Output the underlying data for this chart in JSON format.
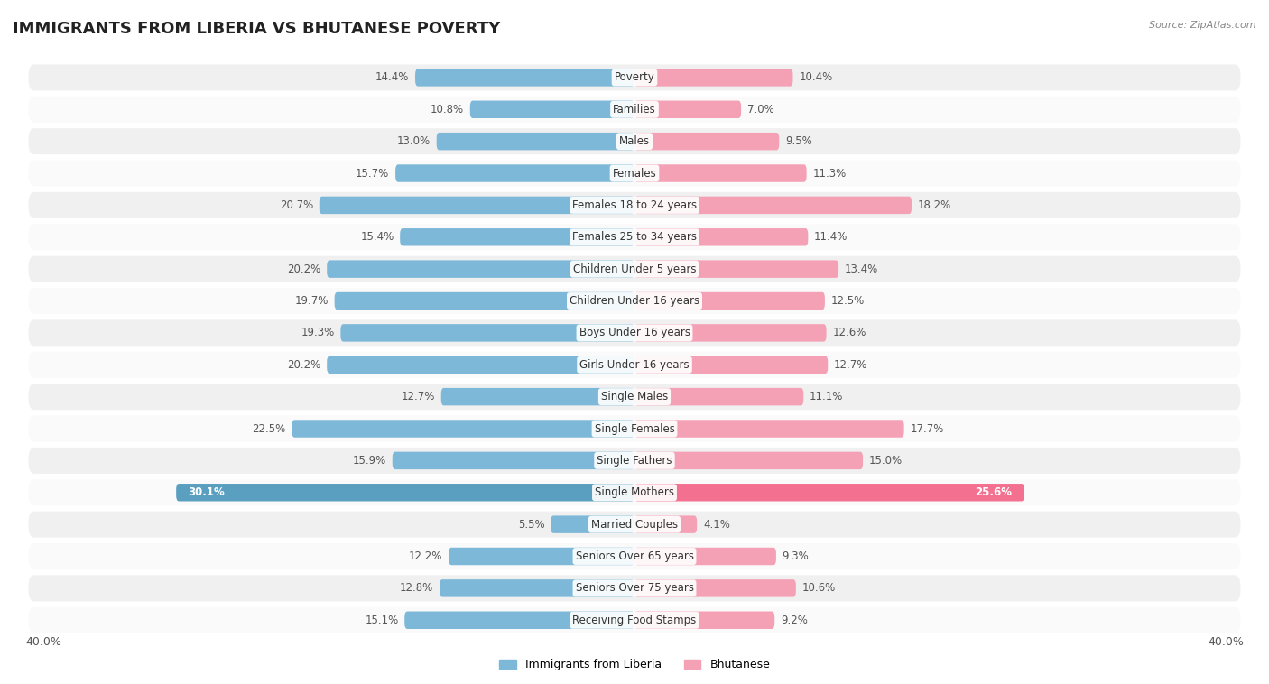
{
  "title": "IMMIGRANTS FROM LIBERIA VS BHUTANESE POVERTY",
  "source": "Source: ZipAtlas.com",
  "categories": [
    "Poverty",
    "Families",
    "Males",
    "Females",
    "Females 18 to 24 years",
    "Females 25 to 34 years",
    "Children Under 5 years",
    "Children Under 16 years",
    "Boys Under 16 years",
    "Girls Under 16 years",
    "Single Males",
    "Single Females",
    "Single Fathers",
    "Single Mothers",
    "Married Couples",
    "Seniors Over 65 years",
    "Seniors Over 75 years",
    "Receiving Food Stamps"
  ],
  "liberia_values": [
    14.4,
    10.8,
    13.0,
    15.7,
    20.7,
    15.4,
    20.2,
    19.7,
    19.3,
    20.2,
    12.7,
    22.5,
    15.9,
    30.1,
    5.5,
    12.2,
    12.8,
    15.1
  ],
  "bhutanese_values": [
    10.4,
    7.0,
    9.5,
    11.3,
    18.2,
    11.4,
    13.4,
    12.5,
    12.6,
    12.7,
    11.1,
    17.7,
    15.0,
    25.6,
    4.1,
    9.3,
    10.6,
    9.2
  ],
  "liberia_color": "#7db8d8",
  "bhutanese_color": "#f4a0b5",
  "highlight_liberia_color": "#5a9fc0",
  "highlight_bhutanese_color": "#f47090",
  "background_color": "#ffffff",
  "row_color_odd": "#f0f0f0",
  "row_color_even": "#fafafa",
  "xlim": 40.0,
  "bar_height": 0.55,
  "label_fontsize": 8.5,
  "category_fontsize": 8.5,
  "title_fontsize": 13,
  "legend_fontsize": 9,
  "bottom_label": "40.0%"
}
